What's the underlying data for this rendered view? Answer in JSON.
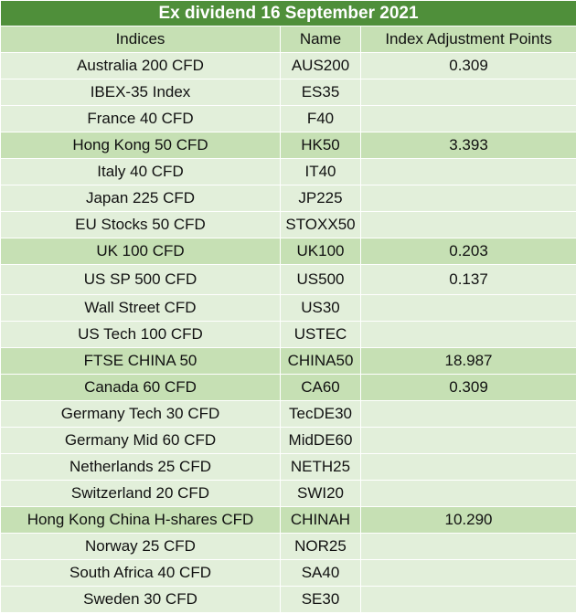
{
  "title": "Ex dividend 16 September 2021",
  "columns": [
    "Indices",
    "Name",
    "Index Adjustment Points"
  ],
  "rows": [
    {
      "index": "Australia 200 CFD",
      "name": "AUS200",
      "points": "0.309",
      "shade": "a"
    },
    {
      "index": "IBEX-35 Index",
      "name": "ES35",
      "points": "",
      "shade": "a"
    },
    {
      "index": "France 40 CFD",
      "name": "F40",
      "points": "",
      "shade": "a"
    },
    {
      "index": "Hong Kong 50 CFD",
      "name": "HK50",
      "points": "3.393",
      "shade": "b"
    },
    {
      "index": "Italy 40 CFD",
      "name": "IT40",
      "points": "",
      "shade": "a"
    },
    {
      "index": "Japan 225 CFD",
      "name": "JP225",
      "points": "",
      "shade": "a"
    },
    {
      "index": "EU Stocks 50 CFD",
      "name": "STOXX50",
      "points": "",
      "shade": "a"
    },
    {
      "index": "UK 100 CFD",
      "name": "UK100",
      "points": "0.203",
      "shade": "b"
    },
    {
      "index": "US SP 500 CFD",
      "name": "US500",
      "points": "0.137",
      "shade": "a",
      "tall": true
    },
    {
      "index": "Wall Street CFD",
      "name": "US30",
      "points": "",
      "shade": "a"
    },
    {
      "index": "US Tech 100 CFD",
      "name": "USTEC",
      "points": "",
      "shade": "a"
    },
    {
      "index": "FTSE CHINA 50",
      "name": "CHINA50",
      "points": "18.987",
      "shade": "b"
    },
    {
      "index": "Canada 60 CFD",
      "name": "CA60",
      "points": "0.309",
      "shade": "b"
    },
    {
      "index": "Germany Tech 30 CFD",
      "name": "TecDE30",
      "points": "",
      "shade": "a"
    },
    {
      "index": "Germany Mid 60 CFD",
      "name": "MidDE60",
      "points": "",
      "shade": "a"
    },
    {
      "index": "Netherlands 25 CFD",
      "name": "NETH25",
      "points": "",
      "shade": "a"
    },
    {
      "index": "Switzerland 20 CFD",
      "name": "SWI20",
      "points": "",
      "shade": "a"
    },
    {
      "index": "Hong Kong China H-shares CFD",
      "name": "CHINAH",
      "points": "10.290",
      "shade": "b"
    },
    {
      "index": "Norway 25 CFD",
      "name": "NOR25",
      "points": "",
      "shade": "a"
    },
    {
      "index": "South Africa 40 CFD",
      "name": "SA40",
      "points": "",
      "shade": "a"
    },
    {
      "index": "Sweden 30 CFD",
      "name": "SE30",
      "points": "",
      "shade": "a"
    }
  ],
  "colors": {
    "title_bg": "#4f8f3a",
    "shade_light": "#e2efda",
    "shade_dark": "#c6e0b4"
  }
}
